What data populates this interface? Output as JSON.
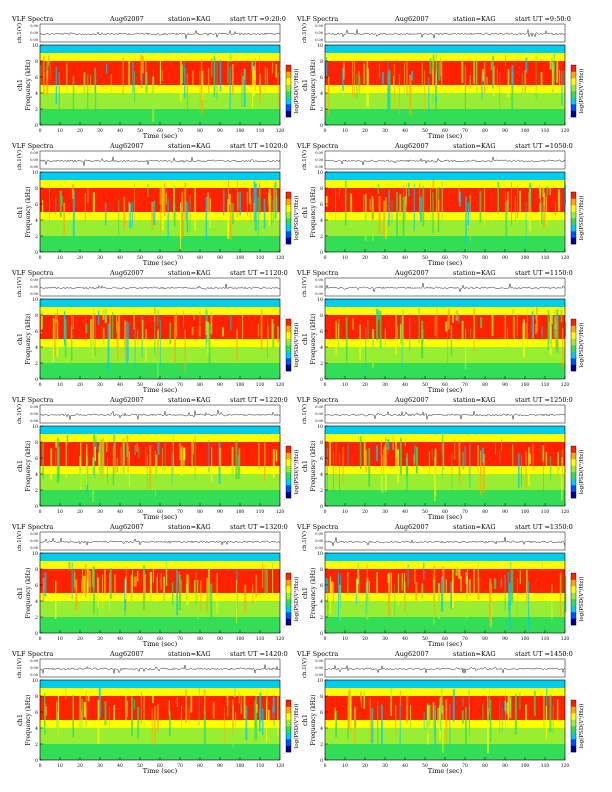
{
  "page_title": "",
  "panels": [
    {
      "title": "VLF Spectra",
      "date": "Aug62007",
      "station": "station=KAG",
      "start": "start  UT  =9:20:0"
    },
    {
      "title": "VLF Spectra",
      "date": "Aug62007",
      "station": "station=KAG",
      "start": "start  UT  =9:50:0"
    },
    {
      "title": "VLF Spectra",
      "date": "Aug62007",
      "station": "station=KAG",
      "start": "start  UT  =1020:0"
    },
    {
      "title": "VLF Spectra",
      "date": "Aug62007",
      "station": "station=KAG",
      "start": "start  UT  =1050:0"
    },
    {
      "title": "VLF Spectra",
      "date": "Aug62007",
      "station": "station=KAG",
      "start": "start  UT  =1120:0"
    },
    {
      "title": "VLF Spectra",
      "date": "Aug62007",
      "station": "station=KAG",
      "start": "start  UT  =1150:0"
    },
    {
      "title": "VLF Spectra",
      "date": "Aug62007",
      "station": "station=KAG",
      "start": "start  UT  =1220:0"
    },
    {
      "title": "VLF Spectra",
      "date": "Aug62007",
      "station": "station=KAG",
      "start": "start  UT  =1250:0"
    },
    {
      "title": "VLF Spectra",
      "date": "Aug62007",
      "station": "station=KAG",
      "start": "start  UT  =1320:0"
    },
    {
      "title": "VLF Spectra",
      "date": "Aug62007",
      "station": "station=KAG",
      "start": "start  UT  =1350:0"
    },
    {
      "title": "VLF Spectra",
      "date": "Aug62007",
      "station": "station=KAG",
      "start": "start  UT  =1420:0"
    },
    {
      "title": "VLF Spectra",
      "date": "Aug62007",
      "station": "station=KAG",
      "start": "start  UT  =1450:0"
    }
  ],
  "chart_data": {
    "type": "heatmap",
    "xlabel": "Time  (sec)",
    "ylabel": "Frequency  (kHz)",
    "ylabel_channel": "ch1",
    "waveform_label": "ch.1(V)",
    "waveform_ticks": [
      "0.00",
      "0.00",
      "0.00"
    ],
    "colorbar_label": "log(PSD(V²/Hz))",
    "colorbar_ticks": [
      "-",
      "-"
    ],
    "x_ticks": [
      0,
      10,
      20,
      30,
      40,
      50,
      60,
      70,
      80,
      90,
      100,
      110,
      120
    ],
    "y_ticks": [
      0,
      2,
      4,
      6,
      8,
      10
    ],
    "xlim": [
      0,
      120
    ],
    "ylim": [
      0,
      10
    ],
    "colormap": [
      "#00008b",
      "#0050ff",
      "#00ccee",
      "#33dd55",
      "#99ee33",
      "#ffff00",
      "#ffaa00",
      "#ff2200"
    ],
    "bands": [
      {
        "fmin": 0,
        "fmax": 2,
        "level": "#33dd55"
      },
      {
        "fmin": 2,
        "fmax": 4,
        "level": "#99ee33"
      },
      {
        "fmin": 4,
        "fmax": 5,
        "level": "#ffff00"
      },
      {
        "fmin": 5,
        "fmax": 8,
        "level": "#ff2200"
      },
      {
        "fmin": 8,
        "fmax": 9,
        "level": "#ffff00"
      },
      {
        "fmin": 9,
        "fmax": 10,
        "level": "#00ccee"
      }
    ]
  }
}
